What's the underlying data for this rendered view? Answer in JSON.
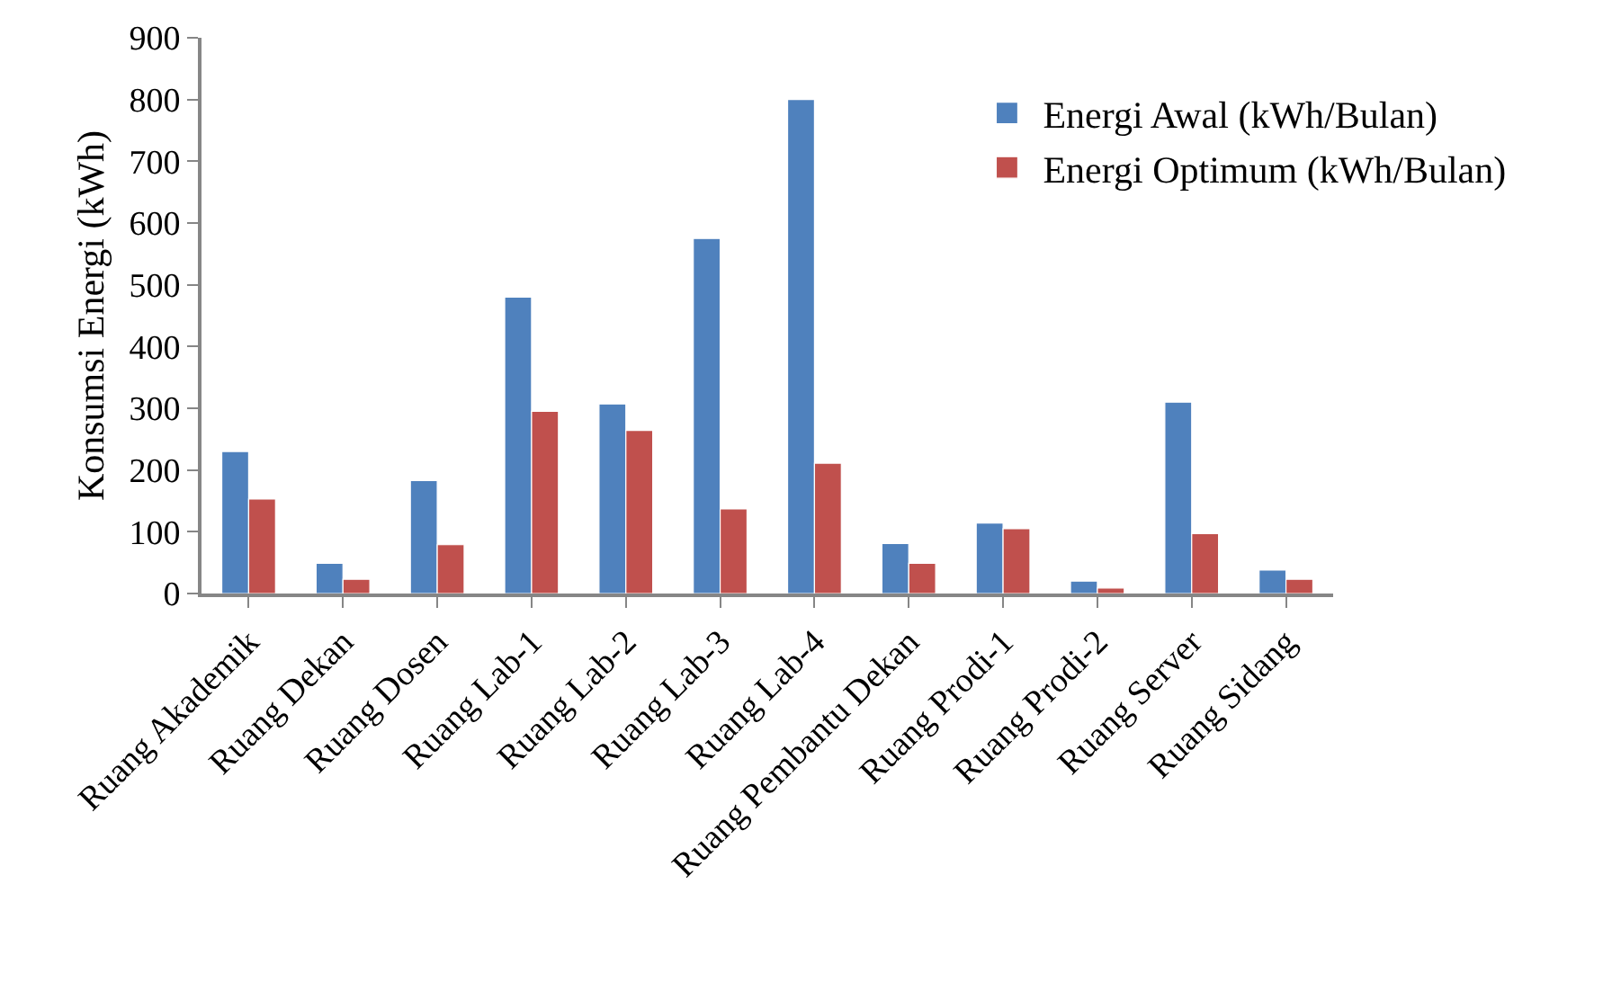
{
  "chart_data": {
    "type": "bar",
    "ylabel": "Konsumsi Energi (kWh)",
    "categories": [
      "Ruang Akademik",
      "Ruang Dekan",
      "Ruang Dosen",
      "Ruang Lab-1",
      "Ruang Lab-2",
      "Ruang Lab-3",
      "Ruang Lab-4",
      "Ruang Pembantu Dekan",
      "Ruang Prodi-1",
      "Ruang Prodi-2",
      "Ruang Server",
      "Ruang Sidang"
    ],
    "series": [
      {
        "name": "Energi Awal (kWh/Bulan)",
        "color": "#4f81bd",
        "values": [
          230,
          49,
          183,
          480,
          307,
          575,
          800,
          81,
          114,
          20,
          310,
          38
        ]
      },
      {
        "name": "Energi Optimum (kWh/Bulan)",
        "color": "#c0504d",
        "values": [
          153,
          23,
          79,
          295,
          264,
          137,
          211,
          49,
          105,
          9,
          97,
          23
        ]
      }
    ],
    "ylim": [
      0,
      900
    ],
    "yticks": [
      0,
      100,
      200,
      300,
      400,
      500,
      600,
      700,
      800,
      900
    ],
    "grid": false,
    "legend": "top right"
  }
}
